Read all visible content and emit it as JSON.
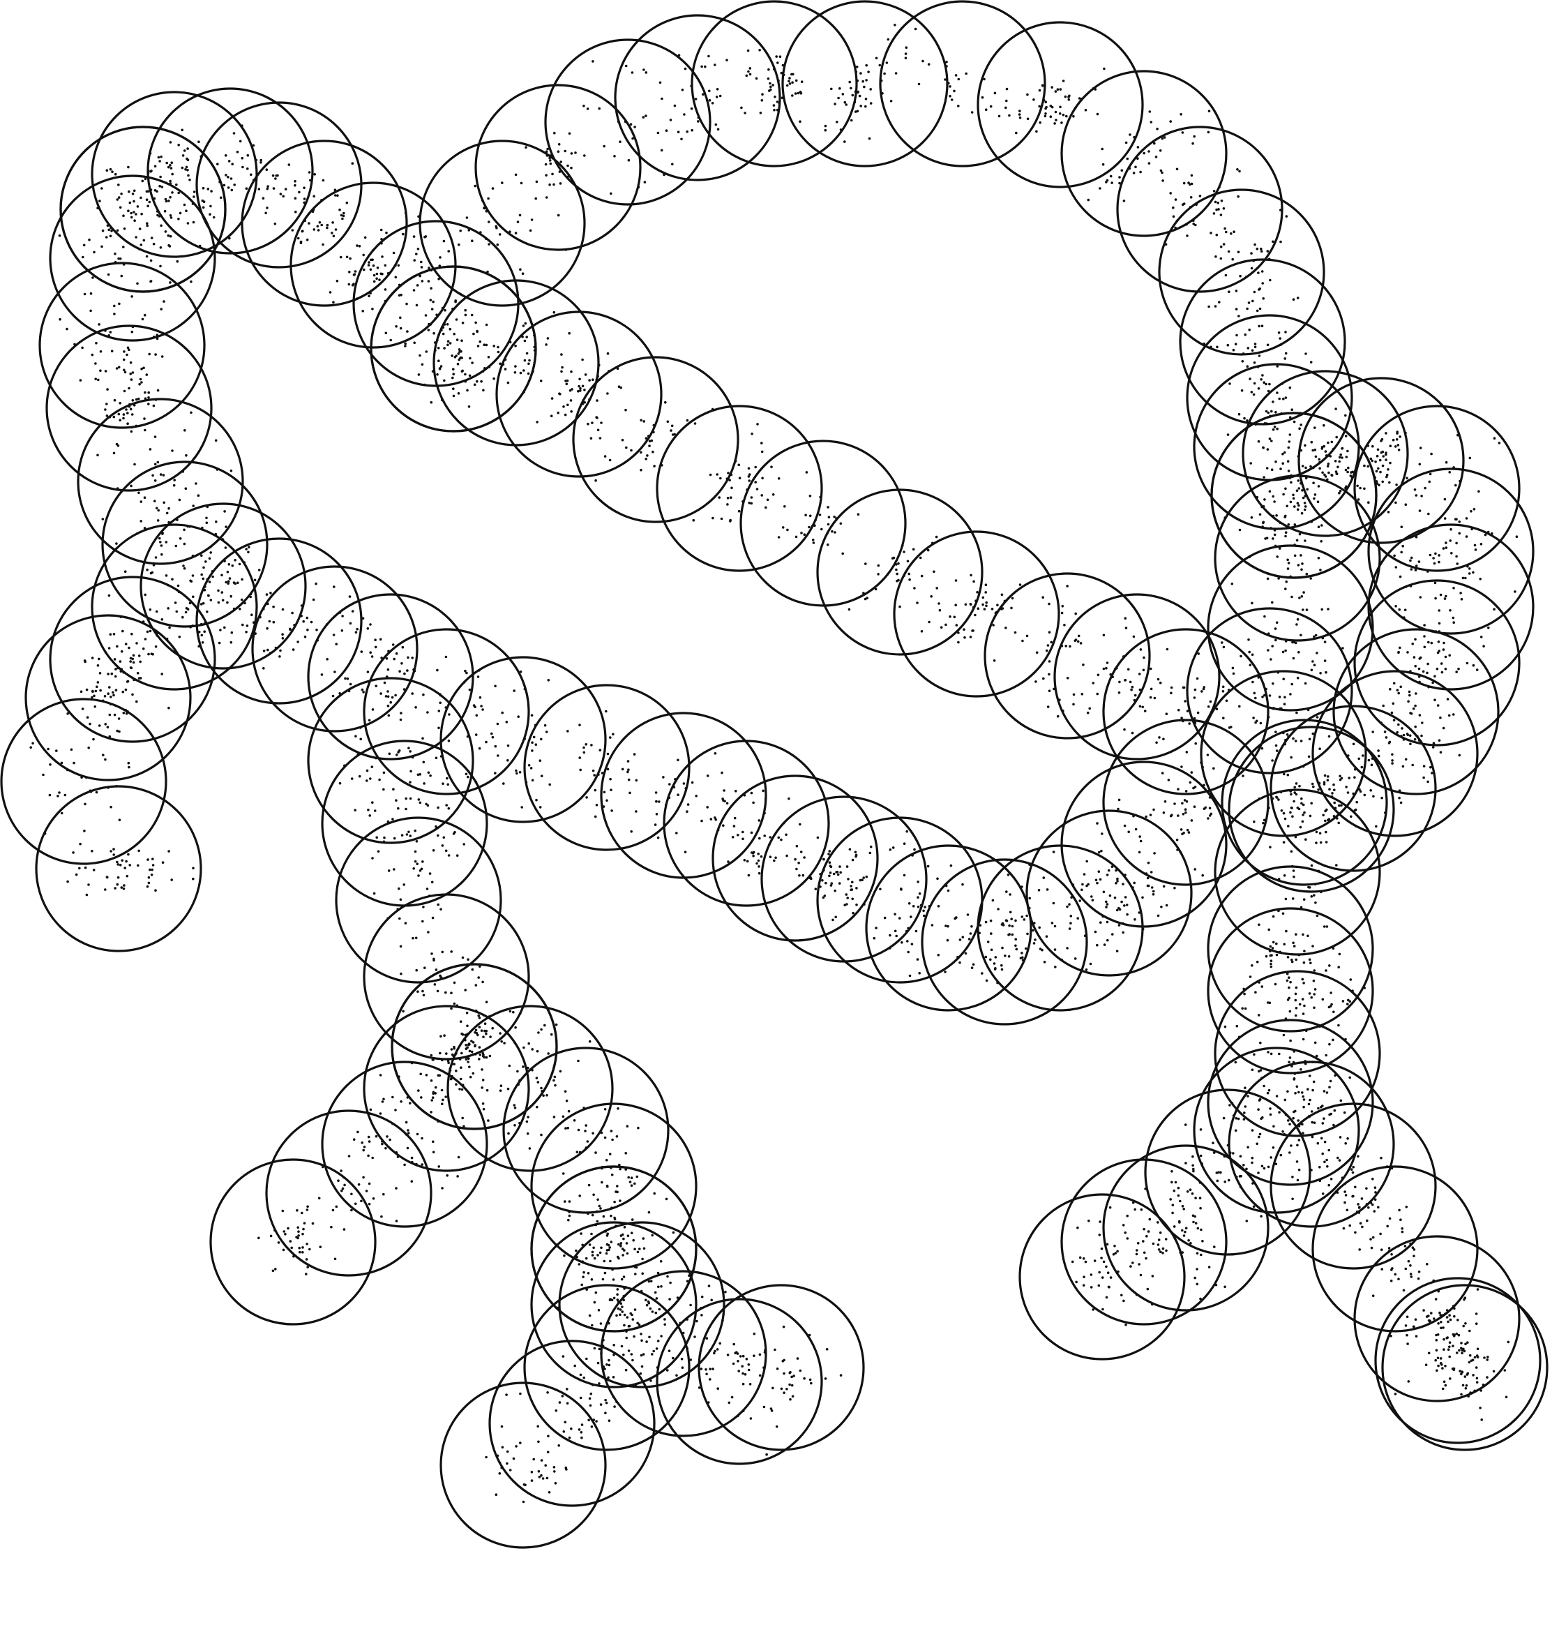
{
  "figure": {
    "kind": "overlapping-circles-with-point-clouds",
    "background_color": "#ffffff",
    "stroke_color": "#111111",
    "dot_color": "#111111",
    "circle_count": 118,
    "has_text": false,
    "has_axes": false,
    "has_legend": false
  }
}
